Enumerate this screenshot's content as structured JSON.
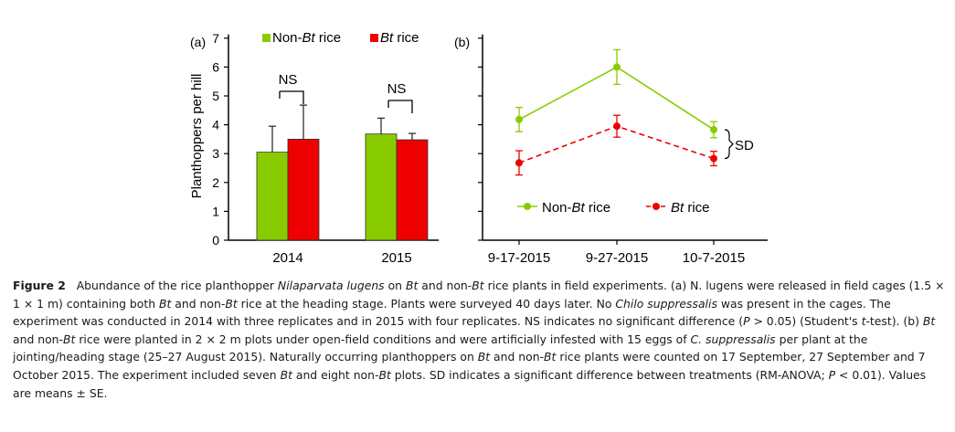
{
  "chart_data": [
    {
      "type": "bar",
      "panel_label": "(a)",
      "ylabel": "Planthoppers per hill",
      "ylim": [
        0,
        7
      ],
      "yticks": [
        "0",
        "1",
        "2",
        "3",
        "4",
        "5",
        "6",
        "7"
      ],
      "categories": [
        "2014",
        "2015"
      ],
      "series": [
        {
          "name": "Non-Bt rice",
          "legend_prefix": "Non-",
          "legend_italic": "Bt",
          "legend_suffix": " rice",
          "color": "#88cc00",
          "values": [
            3.05,
            3.68
          ],
          "errors": [
            0.9,
            0.55
          ]
        },
        {
          "name": "Bt rice",
          "legend_prefix": "",
          "legend_italic": "Bt",
          "legend_suffix": " rice",
          "color": "#ee0000",
          "values": [
            3.5,
            3.48
          ],
          "errors": [
            1.18,
            0.22
          ]
        }
      ],
      "annotations": [
        "NS",
        "NS"
      ]
    },
    {
      "type": "line",
      "panel_label": "(b)",
      "x": [
        "9-17-2015",
        "9-27-2015",
        "10-7-2015"
      ],
      "ylim": [
        0,
        7
      ],
      "series": [
        {
          "name": "Non-Bt rice",
          "legend_prefix": "Non-",
          "legend_italic": "Bt",
          "legend_suffix": " rice",
          "color": "#88cc00",
          "style": "solid",
          "values": [
            4.18,
            6.0,
            3.83
          ],
          "errors": [
            0.42,
            0.6,
            0.28
          ]
        },
        {
          "name": "Bt rice",
          "legend_prefix": "",
          "legend_italic": "Bt",
          "legend_suffix": " rice",
          "color": "#ee0000",
          "style": "dashed",
          "values": [
            2.68,
            3.95,
            2.83
          ],
          "errors": [
            0.42,
            0.38,
            0.25
          ]
        }
      ],
      "annotations": [
        "SD"
      ]
    }
  ],
  "caption": {
    "label": "Figure 2",
    "text": "Abundance of the rice planthopper Nilaparvata lugens on Bt and non-Bt rice plants in field experiments. (a) N. lugens were released in field cages (1.5 × 1 × 1 m) containing both Bt and non-Bt rice at the heading stage. Plants were surveyed 40 days later. No Chilo suppressalis was present in the cages. The experiment was conducted in 2014 with three replicates and in 2015 with four replicates. NS indicates no significant difference (P > 0.05) (Student's t-test). (b) Bt and non-Bt rice were planted in 2 × 2 m plots under open-field conditions and were artificially infested with 15 eggs of C. suppressalis per plant at the jointing/heading stage (25–27 August 2015). Naturally occurring planthoppers on Bt and non-Bt rice plants were counted on 17 September, 27 September and 7 October 2015. The experiment included seven Bt and eight non-Bt plots. SD indicates a significant difference between treatments (RM-ANOVA; P < 0.01). Values are means ± SE.",
    "italic_terms": [
      "Nilaparvata lugens",
      "N.  lugens",
      "Chilo suppressalis",
      "C. suppressalis",
      "Bt",
      "P",
      "t"
    ]
  }
}
